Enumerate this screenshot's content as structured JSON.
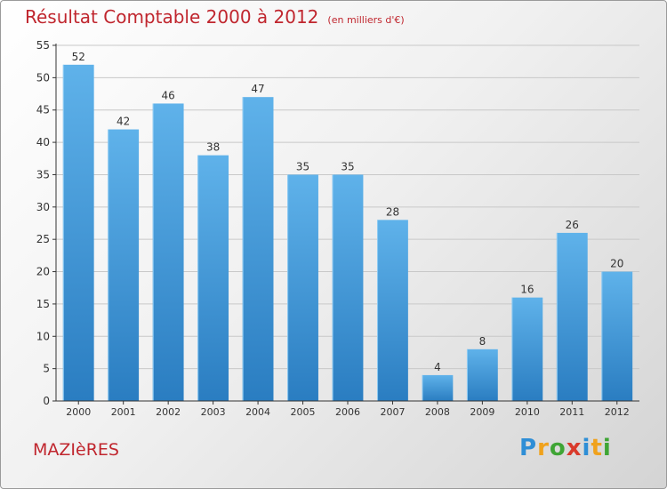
{
  "header": {
    "title": "Résultat Comptable 2000 à 2012",
    "unit": "(en milliers d'€)"
  },
  "footer": {
    "commune": "MAZIèRES",
    "logo_letters": [
      "P",
      "r",
      "o",
      "x",
      "i",
      "t",
      "i"
    ],
    "logo_colors": [
      "#2e8ed6",
      "#f0a21c",
      "#3fa535",
      "#d93a2b",
      "#2e8ed6",
      "#f0a21c",
      "#3fa535"
    ]
  },
  "colors": {
    "title": "#c0262e",
    "bar_top": "#5fb2ea",
    "bar_bottom": "#2a7dc1",
    "grid": "#c8c8c8",
    "axis": "#333333"
  },
  "chart_data": {
    "type": "bar",
    "categories": [
      "2000",
      "2001",
      "2002",
      "2003",
      "2004",
      "2005",
      "2006",
      "2007",
      "2008",
      "2009",
      "2010",
      "2011",
      "2012"
    ],
    "values": [
      52,
      42,
      46,
      38,
      47,
      35,
      35,
      28,
      4,
      8,
      16,
      26,
      20
    ],
    "ylim": [
      0,
      55
    ],
    "yticks": [
      0,
      5,
      10,
      15,
      20,
      25,
      30,
      35,
      40,
      45,
      50,
      55
    ],
    "grid": true,
    "data_labels": true
  }
}
